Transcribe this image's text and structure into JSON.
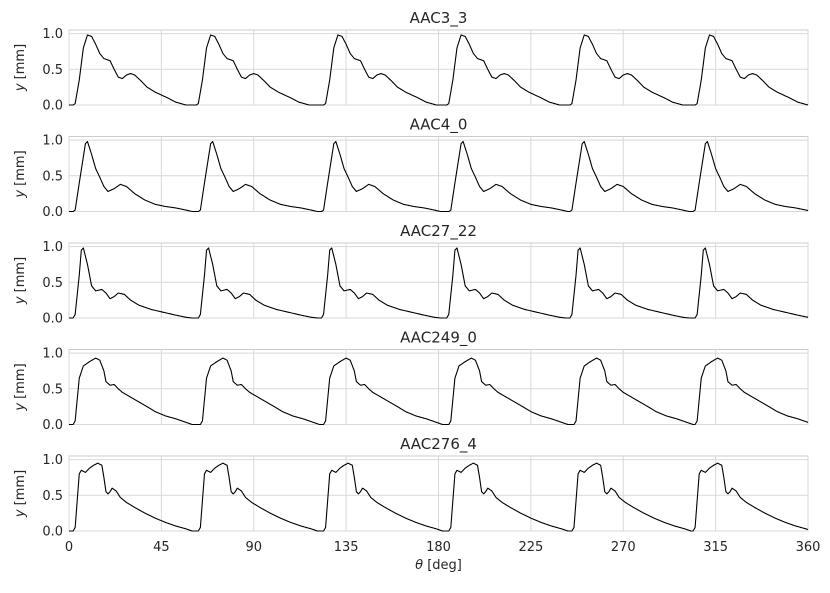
{
  "chart_data": {
    "type": "line",
    "shared_x_axis": true,
    "xlabel_symbol": "θ",
    "xlabel_unit": " [deg]",
    "xlim": [
      0,
      360
    ],
    "xticks": [
      0,
      45,
      90,
      135,
      180,
      225,
      270,
      315,
      360
    ],
    "ylabel_symbol": "y",
    "ylabel_unit": " [mm]",
    "ylim": [
      0,
      1.05
    ],
    "yticks": [
      0.0,
      0.5,
      1.0
    ],
    "ytick_labels": [
      "0.0",
      "0.5",
      "1.0"
    ],
    "grid": true,
    "line_color": "#000000",
    "grid_color": "#d9d9d9",
    "panels": [
      {
        "title": "AAC3_3",
        "cycle_starts": [
          2,
          62,
          124,
          184,
          244,
          305
        ],
        "cycle_shape": [
          [
            0,
            0.0
          ],
          [
            1,
            0.02
          ],
          [
            3,
            0.35
          ],
          [
            5,
            0.8
          ],
          [
            7,
            0.98
          ],
          [
            9,
            0.96
          ],
          [
            11,
            0.85
          ],
          [
            13,
            0.72
          ],
          [
            15,
            0.65
          ],
          [
            18,
            0.62
          ],
          [
            20,
            0.5
          ],
          [
            22,
            0.39
          ],
          [
            24,
            0.37
          ],
          [
            26,
            0.42
          ],
          [
            28,
            0.44
          ],
          [
            30,
            0.42
          ],
          [
            33,
            0.34
          ],
          [
            36,
            0.25
          ],
          [
            40,
            0.18
          ],
          [
            46,
            0.1
          ],
          [
            50,
            0.04
          ],
          [
            55,
            0.0
          ]
        ]
      },
      {
        "title": "AAC4_0",
        "cycle_starts": [
          2,
          63,
          123,
          185,
          244,
          304
        ],
        "cycle_shape": [
          [
            0,
            0.0
          ],
          [
            1,
            0.02
          ],
          [
            3,
            0.4
          ],
          [
            6,
            0.95
          ],
          [
            7,
            0.98
          ],
          [
            9,
            0.8
          ],
          [
            11,
            0.6
          ],
          [
            13,
            0.48
          ],
          [
            15,
            0.35
          ],
          [
            17,
            0.28
          ],
          [
            20,
            0.32
          ],
          [
            23,
            0.38
          ],
          [
            26,
            0.35
          ],
          [
            30,
            0.25
          ],
          [
            35,
            0.16
          ],
          [
            40,
            0.1
          ],
          [
            45,
            0.07
          ],
          [
            50,
            0.05
          ],
          [
            55,
            0.02
          ],
          [
            58,
            0.0
          ]
        ]
      },
      {
        "title": "AAC27_22",
        "cycle_starts": [
          2,
          63,
          123,
          184,
          244,
          305
        ],
        "cycle_shape": [
          [
            0,
            0.0
          ],
          [
            1,
            0.05
          ],
          [
            3,
            0.6
          ],
          [
            4,
            0.95
          ],
          [
            5,
            0.98
          ],
          [
            7,
            0.75
          ],
          [
            9,
            0.45
          ],
          [
            11,
            0.38
          ],
          [
            14,
            0.4
          ],
          [
            16,
            0.35
          ],
          [
            18,
            0.27
          ],
          [
            20,
            0.3
          ],
          [
            22,
            0.35
          ],
          [
            25,
            0.33
          ],
          [
            28,
            0.25
          ],
          [
            32,
            0.18
          ],
          [
            38,
            0.12
          ],
          [
            44,
            0.08
          ],
          [
            50,
            0.04
          ],
          [
            55,
            0.01
          ],
          [
            58,
            0.0
          ]
        ]
      },
      {
        "title": "AAC249_0",
        "cycle_starts": [
          2,
          64,
          124,
          185,
          246,
          305
        ],
        "cycle_shape": [
          [
            0,
            0.0
          ],
          [
            1,
            0.05
          ],
          [
            3,
            0.65
          ],
          [
            5,
            0.82
          ],
          [
            8,
            0.88
          ],
          [
            11,
            0.93
          ],
          [
            13,
            0.9
          ],
          [
            15,
            0.75
          ],
          [
            16,
            0.6
          ],
          [
            18,
            0.55
          ],
          [
            20,
            0.56
          ],
          [
            22,
            0.5
          ],
          [
            24,
            0.45
          ],
          [
            27,
            0.4
          ],
          [
            30,
            0.35
          ],
          [
            33,
            0.3
          ],
          [
            36,
            0.25
          ],
          [
            40,
            0.18
          ],
          [
            45,
            0.12
          ],
          [
            50,
            0.08
          ],
          [
            55,
            0.03
          ],
          [
            58,
            0.0
          ]
        ]
      },
      {
        "title": "AAC276_4",
        "cycle_starts": [
          2,
          63,
          124,
          185,
          245,
          304
        ],
        "cycle_shape": [
          [
            0,
            0.0
          ],
          [
            1,
            0.05
          ],
          [
            3,
            0.8
          ],
          [
            4,
            0.85
          ],
          [
            6,
            0.82
          ],
          [
            8,
            0.88
          ],
          [
            10,
            0.92
          ],
          [
            12,
            0.95
          ],
          [
            14,
            0.92
          ],
          [
            15,
            0.75
          ],
          [
            16,
            0.55
          ],
          [
            17,
            0.52
          ],
          [
            18,
            0.55
          ],
          [
            19,
            0.6
          ],
          [
            21,
            0.56
          ],
          [
            23,
            0.47
          ],
          [
            26,
            0.4
          ],
          [
            30,
            0.33
          ],
          [
            35,
            0.25
          ],
          [
            40,
            0.18
          ],
          [
            45,
            0.12
          ],
          [
            50,
            0.07
          ],
          [
            55,
            0.03
          ],
          [
            58,
            0.0
          ]
        ]
      }
    ]
  }
}
